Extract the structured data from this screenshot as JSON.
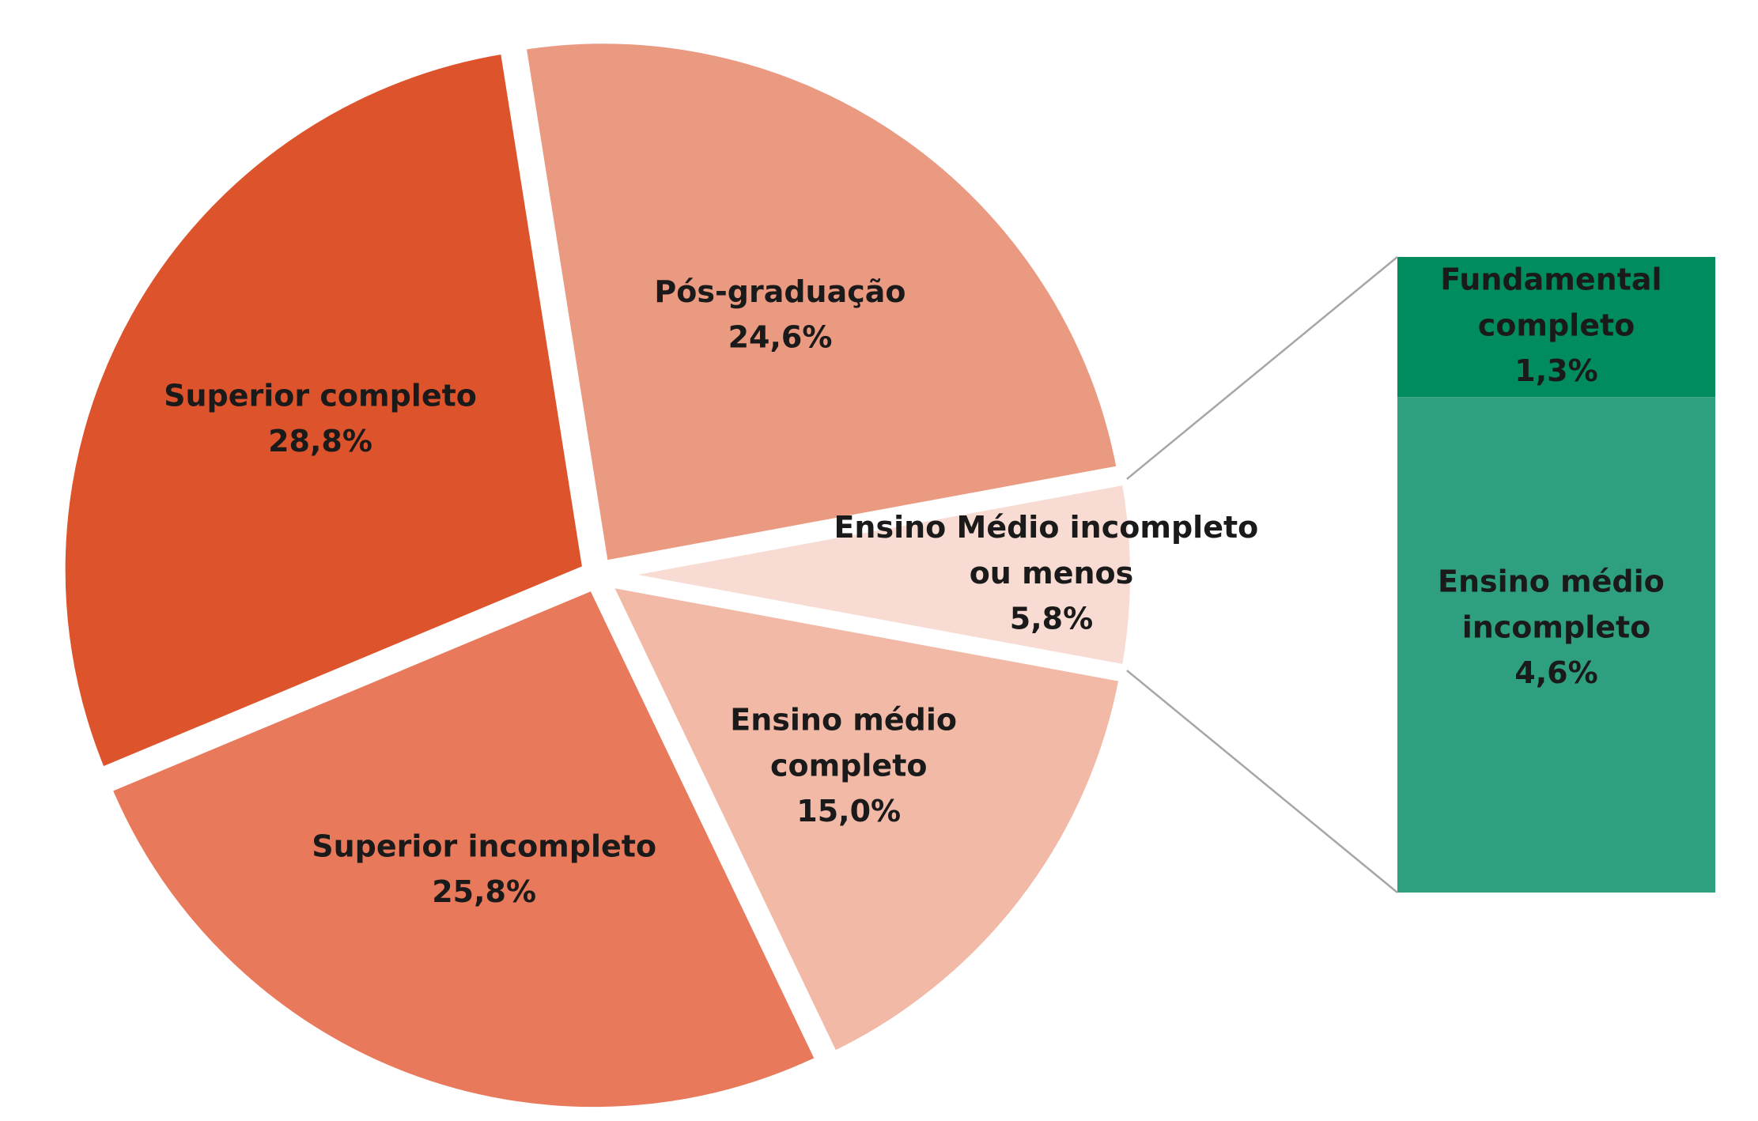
{
  "chart_data": {
    "type": "pie-of-bar",
    "categories": [
      "Pós-graduação",
      "Ensino Médio incompleto ou menos",
      "Ensino médio completo",
      "Superior incompleto",
      "Superior completo"
    ],
    "values": [
      24.6,
      5.8,
      15.0,
      25.8,
      28.8
    ],
    "value_labels": [
      "24,6%",
      "5,8%",
      "15,0%",
      "25,8%",
      "28,8%"
    ],
    "colors": [
      "#eb9a82",
      "#f8dcd3",
      "#f2b9a7",
      "#e8795a",
      "#dd532b"
    ],
    "bar": {
      "categories": [
        "Fundamental completo",
        "Ensino médio incompleto"
      ],
      "values": [
        1.3,
        4.6
      ],
      "value_labels": [
        "1,3%",
        "4,6%"
      ],
      "colors": [
        "#008c5e",
        "#2fa07f"
      ]
    }
  }
}
